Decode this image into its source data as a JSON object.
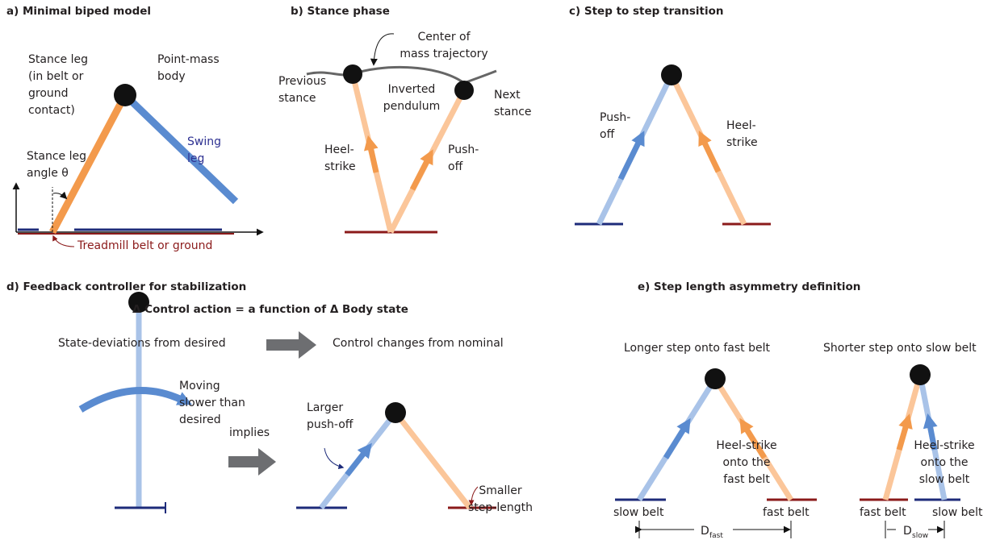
{
  "panels": [
    {
      "title": "a) Minimal biped model",
      "labels": [
        [
          "Stance leg",
          "(in belt or",
          "ground",
          "contact)"
        ],
        [
          "Point-mass",
          "body"
        ],
        [
          "Swing",
          "leg"
        ],
        [
          "Stance leg",
          "angle θ"
        ],
        [
          "Treadmill belt or ground"
        ]
      ]
    },
    {
      "title": "b) Stance phase",
      "labels": [
        [
          "Center of",
          "mass trajectory"
        ],
        [
          "Previous",
          "stance"
        ],
        [
          "Inverted",
          "pendulum"
        ],
        [
          "Next",
          "stance"
        ],
        [
          "Heel-",
          "strike"
        ],
        [
          "Push-",
          "off"
        ]
      ]
    },
    {
      "title": "c) Step to step transition",
      "labels": [
        [
          "Push-",
          "off"
        ],
        [
          "Heel-",
          "strike"
        ]
      ]
    },
    {
      "title": "d) Feedback controller for stabilization",
      "subtitle": "Δ Control action = a function of Δ Body state",
      "labels": [
        [
          "State-deviations from desired"
        ],
        [
          "Control changes from nominal"
        ],
        [
          "Moving",
          "slower than",
          "desired"
        ],
        [
          "implies"
        ],
        [
          "Larger",
          "push-off"
        ],
        [
          "Smaller",
          "step-length"
        ]
      ]
    },
    {
      "title": "e) Step length asymmetry definition",
      "labels": [
        [
          "Longer step onto fast belt"
        ],
        [
          "Shorter step onto slow belt"
        ],
        [
          "Heel-strike",
          "onto the",
          "fast belt"
        ],
        [
          "Heel-strike",
          "onto the",
          "slow belt"
        ],
        [
          "slow belt"
        ],
        [
          "fast belt"
        ],
        [
          "fast belt"
        ],
        [
          "slow belt"
        ]
      ],
      "dimensions": [
        {
          "symbol": "D",
          "subscript": "fast"
        },
        {
          "symbol": "D",
          "subscript": "slow"
        }
      ]
    }
  ]
}
